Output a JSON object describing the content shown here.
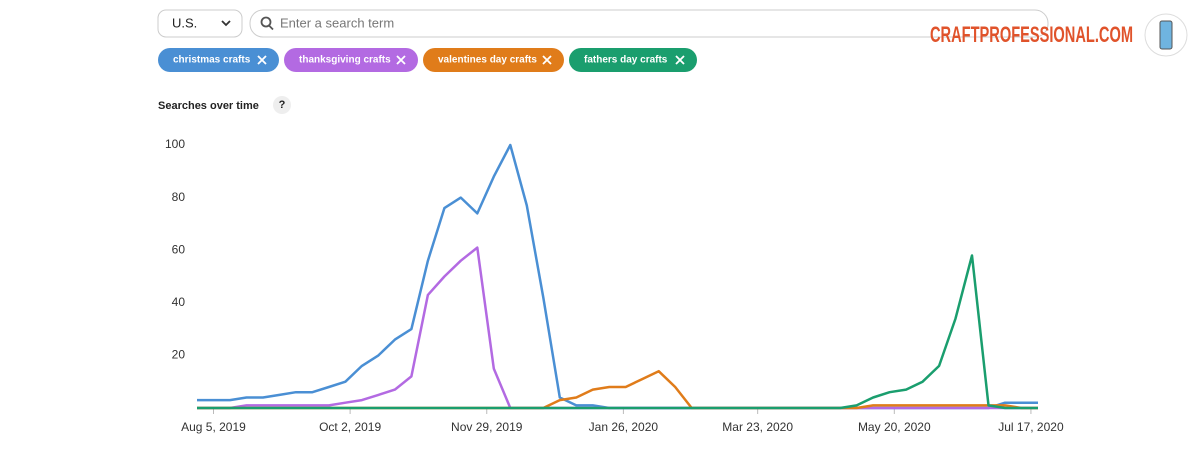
{
  "ui": {
    "country": "U.S.",
    "search_placeholder": "Enter a search term",
    "help_icon": "?",
    "logo": "CRAFTPROFESSIONAL.COM"
  },
  "chart_data": {
    "type": "line",
    "title": "Searches over time",
    "x": [
      "2019-07-29",
      "2019-08-05",
      "2019-08-12",
      "2019-08-19",
      "2019-08-26",
      "2019-09-02",
      "2019-09-09",
      "2019-09-16",
      "2019-09-23",
      "2019-09-30",
      "2019-10-07",
      "2019-10-14",
      "2019-10-21",
      "2019-10-28",
      "2019-11-04",
      "2019-11-11",
      "2019-11-18",
      "2019-11-25",
      "2019-12-02",
      "2019-12-09",
      "2019-12-16",
      "2019-12-23",
      "2019-12-30",
      "2020-01-06",
      "2020-01-13",
      "2020-01-20",
      "2020-01-27",
      "2020-02-03",
      "2020-02-10",
      "2020-02-17",
      "2020-02-24",
      "2020-03-02",
      "2020-03-09",
      "2020-03-16",
      "2020-03-23",
      "2020-03-30",
      "2020-04-06",
      "2020-04-13",
      "2020-04-20",
      "2020-04-27",
      "2020-05-04",
      "2020-05-11",
      "2020-05-18",
      "2020-05-25",
      "2020-06-01",
      "2020-06-08",
      "2020-06-15",
      "2020-06-22",
      "2020-06-29",
      "2020-07-06",
      "2020-07-13",
      "2020-07-20"
    ],
    "xlim": [
      "2019-07-29",
      "2020-07-20"
    ],
    "xticks": [
      {
        "value": "2019-08-05",
        "label": "Aug 5, 2019"
      },
      {
        "value": "2019-10-02",
        "label": "Oct 2, 2019"
      },
      {
        "value": "2019-11-29",
        "label": "Nov 29, 2019"
      },
      {
        "value": "2020-01-26",
        "label": "Jan 26, 2020"
      },
      {
        "value": "2020-03-23",
        "label": "Mar 23, 2020"
      },
      {
        "value": "2020-05-20",
        "label": "May 20, 2020"
      },
      {
        "value": "2020-07-17",
        "label": "Jul 17, 2020"
      }
    ],
    "ylim": [
      0,
      100
    ],
    "yticks": [
      20,
      40,
      60,
      80,
      100
    ],
    "grid": false,
    "series": [
      {
        "name": "christmas crafts",
        "color": "#4a8fd4",
        "values": [
          3,
          3,
          3,
          4,
          4,
          5,
          6,
          6,
          8,
          10,
          16,
          20,
          26,
          30,
          56,
          76,
          80,
          74,
          88,
          100,
          77,
          42,
          4,
          1,
          1,
          0,
          0,
          0,
          0,
          0,
          0,
          0,
          0,
          0,
          0,
          0,
          0,
          0,
          0,
          0,
          0,
          0,
          0,
          0,
          0,
          0,
          0,
          0,
          0,
          2,
          2,
          2
        ]
      },
      {
        "name": "thanksgiving crafts",
        "color": "#b36ae2",
        "values": [
          0,
          0,
          0,
          1,
          1,
          1,
          1,
          1,
          1,
          2,
          3,
          5,
          7,
          12,
          43,
          50,
          56,
          61,
          15,
          0,
          0,
          0,
          0,
          0,
          0,
          0,
          0,
          0,
          0,
          0,
          0,
          0,
          0,
          0,
          0,
          0,
          0,
          0,
          0,
          0,
          0,
          0,
          0,
          0,
          0,
          0,
          0,
          0,
          0,
          0,
          0,
          0
        ]
      },
      {
        "name": "valentines day crafts",
        "color": "#e07c1a",
        "values": [
          0,
          0,
          0,
          0,
          0,
          0,
          0,
          0,
          0,
          0,
          0,
          0,
          0,
          0,
          0,
          0,
          0,
          0,
          0,
          0,
          0,
          0,
          3,
          4,
          7,
          8,
          8,
          11,
          14,
          8,
          0,
          0,
          0,
          0,
          0,
          0,
          0,
          0,
          0,
          0,
          0,
          1,
          1,
          1,
          1,
          1,
          1,
          1,
          1,
          1,
          0,
          0
        ]
      },
      {
        "name": "fathers day crafts",
        "color": "#1a9e6e",
        "values": [
          0,
          0,
          0,
          0,
          0,
          0,
          0,
          0,
          0,
          0,
          0,
          0,
          0,
          0,
          0,
          0,
          0,
          0,
          0,
          0,
          0,
          0,
          0,
          0,
          0,
          0,
          0,
          0,
          0,
          0,
          0,
          0,
          0,
          0,
          0,
          0,
          0,
          0,
          0,
          0,
          1,
          4,
          6,
          7,
          10,
          16,
          34,
          58,
          1,
          0,
          0,
          0
        ]
      }
    ]
  }
}
